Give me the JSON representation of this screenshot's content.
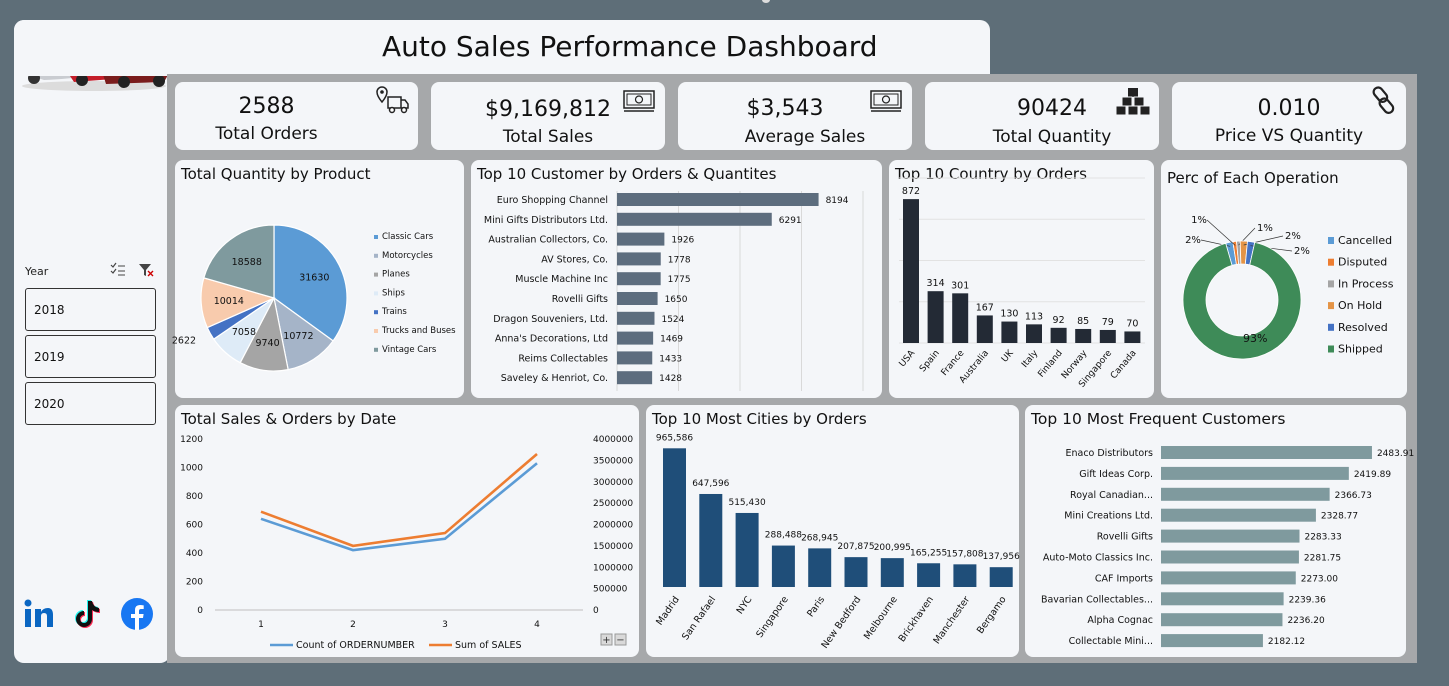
{
  "title": "Auto Sales Performance Dashboard",
  "kpis": [
    {
      "value": "2588",
      "label": "Total Orders",
      "icon": "delivery-truck-icon"
    },
    {
      "value": "$9,169,812",
      "label": "Total Sales",
      "icon": "money-icon"
    },
    {
      "value": "$3,543",
      "label": "Average Sales",
      "icon": "money-icon"
    },
    {
      "value": "90424",
      "label": "Total Quantity",
      "icon": "boxes-icon"
    },
    {
      "value": "0.010",
      "label": "Price VS Quantity",
      "icon": "link-icon"
    }
  ],
  "slicer": {
    "label": "Year",
    "options": [
      "2018",
      "2019",
      "2020"
    ]
  },
  "social": [
    "linkedin-icon",
    "tiktok-icon",
    "facebook-icon"
  ],
  "colors": {
    "bar_slate": "#5d6d7e",
    "bar_dark": "#232a35",
    "bar_navy": "#1f4e79",
    "bar_gray": "#7f9a9e",
    "line_blue": "#5b9bd5",
    "line_orange": "#ed7d31",
    "shipped_green": "#3e8b58"
  },
  "chart_data": [
    {
      "id": "quantity_by_product",
      "type": "pie",
      "title": "Total Quantity by Product",
      "categories": [
        "Classic Cars",
        "Motorcycles",
        "Planes",
        "Ships",
        "Trains",
        "Trucks and Buses",
        "Vintage Cars"
      ],
      "values": [
        31630,
        10772,
        9740,
        7058,
        2622,
        10014,
        18588
      ],
      "labels": [
        "31630",
        "10772",
        "9740",
        "7058",
        "2622",
        "10014",
        "18588"
      ],
      "colors": [
        "#5b9bd5",
        "#a5b4c8",
        "#a5a5a5",
        "#deebf7",
        "#4472c4",
        "#f8cbad",
        "#7f9a9e"
      ],
      "legend": "right"
    },
    {
      "id": "top_customers_orders",
      "type": "bar",
      "orientation": "horizontal",
      "title": "Top 10 Customer by Orders & Quantites",
      "categories": [
        "Euro Shopping Channel",
        "Mini Gifts Distributors Ltd.",
        "Australian Collectors, Co.",
        "AV Stores, Co.",
        "Muscle Machine Inc",
        "Rovelli Gifts",
        "Dragon Souveniers, Ltd.",
        "Anna's Decorations, Ltd",
        "Reims Collectables",
        "Saveley & Henriot, Co."
      ],
      "values": [
        8194,
        6291,
        1926,
        1778,
        1775,
        1650,
        1524,
        1469,
        1433,
        1428
      ],
      "labels": [
        "8194",
        "6291",
        "1926",
        "1778",
        "1775",
        "1650",
        "1524",
        "1469",
        "1433",
        "1428"
      ],
      "xlim": [
        0,
        10000
      ]
    },
    {
      "id": "top_country_orders",
      "type": "bar",
      "title": "Top 10 Country by Orders",
      "categories": [
        "USA",
        "Spain",
        "France",
        "Australia",
        "UK",
        "Italy",
        "Finland",
        "Norway",
        "Singapore",
        "Canada"
      ],
      "values": [
        872,
        314,
        301,
        167,
        130,
        113,
        92,
        85,
        79,
        70
      ],
      "labels": [
        "872",
        "314",
        "301",
        "167",
        "130",
        "113",
        "92",
        "85",
        "79",
        "70"
      ],
      "ylim": [
        0,
        1000
      ]
    },
    {
      "id": "operation_status",
      "type": "pie",
      "variant": "donut",
      "title": "Perc of Each Operation",
      "categories": [
        "Cancelled",
        "Disputed",
        "In Process",
        "On Hold",
        "Resolved",
        "Shipped"
      ],
      "values": [
        2,
        1,
        1,
        2,
        2,
        93
      ],
      "labels": [
        "2%",
        "1%",
        "1%",
        "2%",
        "2%",
        "93%"
      ],
      "colors": [
        "#5b9bd5",
        "#ed7d31",
        "#a5a5a5",
        "#e49447",
        "#4472c4",
        "#3e8b58"
      ],
      "legend": "right"
    },
    {
      "id": "sales_orders_by_date",
      "type": "line",
      "title": "Total Sales & Orders by Date",
      "x": [
        "1",
        "2",
        "3",
        "4"
      ],
      "series": [
        {
          "name": "Count of ORDERNUMBER",
          "axis": "left",
          "values": [
            640,
            420,
            500,
            1030
          ]
        },
        {
          "name": "Sum of SALES",
          "axis": "right",
          "values": [
            2300000,
            1500000,
            1800000,
            3650000
          ]
        }
      ],
      "ylim_left": [
        0,
        1200
      ],
      "yticks_left": [
        "0",
        "200",
        "400",
        "600",
        "800",
        "1000",
        "1200"
      ],
      "ylim_right": [
        0,
        4000000
      ],
      "yticks_right": [
        "0",
        "500000",
        "1000000",
        "1500000",
        "2000000",
        "2500000",
        "3000000",
        "3500000",
        "4000000"
      ],
      "legend": "bottom"
    },
    {
      "id": "top_cities_orders",
      "type": "bar",
      "title": "Top 10 Most Cities by Orders",
      "categories": [
        "Madrid",
        "San Rafael",
        "NYC",
        "Singapore",
        "Paris",
        "New Bedford",
        "Melbourne",
        "Brickhaven",
        "Manchester",
        "Bergamo"
      ],
      "values": [
        965586,
        647596,
        515430,
        288488,
        268945,
        207875,
        200995,
        165255,
        157808,
        137956
      ],
      "labels": [
        "965,586",
        "647,596",
        "515,430",
        "288,488",
        "268,945",
        "207,875",
        "200,995",
        "165,255",
        "157,808",
        "137,956"
      ],
      "ylim": [
        0,
        1100000
      ]
    },
    {
      "id": "frequent_customers",
      "type": "bar",
      "orientation": "horizontal",
      "title": "Top 10 Most Frequent Customers",
      "categories": [
        "Enaco Distributors",
        "Gift Ideas Corp.",
        "Royal Canadian...",
        "Mini Creations Ltd.",
        "Rovelli Gifts",
        "Auto-Moto Classics Inc.",
        "CAF Imports",
        "Bavarian Collectables...",
        "Alpha Cognac",
        "Collectable Mini..."
      ],
      "values": [
        2483.91,
        2419.89,
        2366.73,
        2328.77,
        2283.33,
        2281.75,
        2273.0,
        2239.36,
        2236.2,
        2182.12
      ],
      "labels": [
        "2483.91",
        "2419.89",
        "2366.73",
        "2328.77",
        "2283.33",
        "2281.75",
        "2273.00",
        "2239.36",
        "2236.20",
        "2182.12"
      ],
      "xlim": [
        1900,
        2520
      ]
    }
  ]
}
